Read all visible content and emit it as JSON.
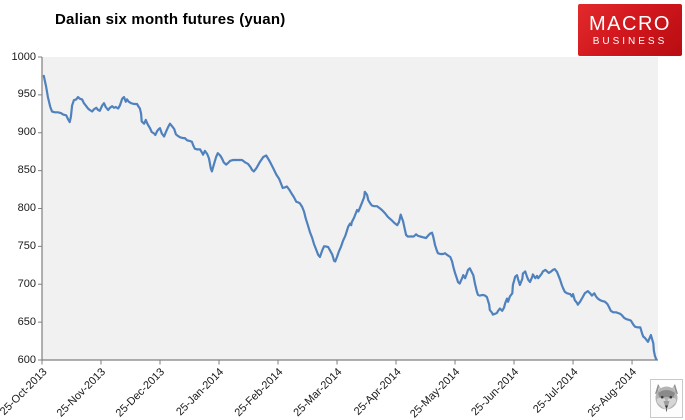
{
  "title": "Dalian six month futures (yuan)",
  "logo": {
    "line1": "MACRO",
    "line2": "BUSINESS",
    "bg_color": "#d2181e",
    "text_color": "#ffffff"
  },
  "wolf_logo": "wolf-head-stamp",
  "chart_data": {
    "type": "line",
    "title": "Dalian six month futures (yuan)",
    "xlabel": "",
    "ylabel": "",
    "ylim": [
      600,
      1000
    ],
    "y_ticks": [
      1000,
      950,
      900,
      850,
      800,
      750,
      700,
      650,
      600
    ],
    "x_tick_labels": [
      "25-Oct-2013",
      "25-Nov-2013",
      "25-Dec-2013",
      "25-Jan-2014",
      "25-Feb-2014",
      "25-Mar-2014",
      "25-Apr-2014",
      "25-May-2014",
      "25-Jun-2014",
      "25-Jul-2014",
      "25-Aug-2014"
    ],
    "x_unit": "months since 25-Oct-2013",
    "x_range_months": [
      0,
      10.44
    ],
    "grid": false,
    "legend": "none",
    "plot_bg": "#f1f1f2",
    "line_color": "#4f81bd",
    "axis_color": "#7f7f7f",
    "series": [
      {
        "name": "Dalian six month futures (yuan)",
        "points": [
          [
            0.03,
            975
          ],
          [
            0.07,
            961
          ],
          [
            0.1,
            947
          ],
          [
            0.14,
            934
          ],
          [
            0.17,
            928
          ],
          [
            0.22,
            927
          ],
          [
            0.27,
            927
          ],
          [
            0.32,
            926
          ],
          [
            0.36,
            924
          ],
          [
            0.41,
            923
          ],
          [
            0.44,
            918
          ],
          [
            0.47,
            914
          ],
          [
            0.49,
            921
          ],
          [
            0.51,
            936
          ],
          [
            0.54,
            943
          ],
          [
            0.58,
            944
          ],
          [
            0.61,
            947
          ],
          [
            0.64,
            945
          ],
          [
            0.68,
            944
          ],
          [
            0.71,
            939
          ],
          [
            0.75,
            935
          ],
          [
            0.78,
            932
          ],
          [
            0.81,
            930
          ],
          [
            0.85,
            928
          ],
          [
            0.88,
            931
          ],
          [
            0.92,
            933
          ],
          [
            0.95,
            930
          ],
          [
            0.98,
            929
          ],
          [
            1.02,
            936
          ],
          [
            1.05,
            939
          ],
          [
            1.08,
            934
          ],
          [
            1.12,
            930
          ],
          [
            1.15,
            933
          ],
          [
            1.19,
            935
          ],
          [
            1.22,
            933
          ],
          [
            1.25,
            934
          ],
          [
            1.29,
            932
          ],
          [
            1.32,
            936
          ],
          [
            1.36,
            945
          ],
          [
            1.39,
            947
          ],
          [
            1.42,
            941
          ],
          [
            1.44,
            944
          ],
          [
            1.47,
            941
          ],
          [
            1.51,
            939
          ],
          [
            1.56,
            938
          ],
          [
            1.61,
            938
          ],
          [
            1.64,
            934
          ],
          [
            1.66,
            932
          ],
          [
            1.68,
            925
          ],
          [
            1.69,
            915
          ],
          [
            1.73,
            912
          ],
          [
            1.76,
            917
          ],
          [
            1.78,
            913
          ],
          [
            1.8,
            910
          ],
          [
            1.83,
            906
          ],
          [
            1.86,
            901
          ],
          [
            1.9,
            899
          ],
          [
            1.92,
            897
          ],
          [
            1.95,
            902
          ],
          [
            1.98,
            905
          ],
          [
            2.0,
            906
          ],
          [
            2.03,
            899
          ],
          [
            2.07,
            895
          ],
          [
            2.1,
            901
          ],
          [
            2.14,
            908
          ],
          [
            2.17,
            912
          ],
          [
            2.2,
            909
          ],
          [
            2.24,
            905
          ],
          [
            2.27,
            898
          ],
          [
            2.3,
            896
          ],
          [
            2.34,
            894
          ],
          [
            2.39,
            893
          ],
          [
            2.42,
            893
          ],
          [
            2.46,
            890
          ],
          [
            2.51,
            889
          ],
          [
            2.54,
            888
          ],
          [
            2.56,
            884
          ],
          [
            2.59,
            879
          ],
          [
            2.63,
            878
          ],
          [
            2.68,
            878
          ],
          [
            2.71,
            874
          ],
          [
            2.73,
            871
          ],
          [
            2.76,
            876
          ],
          [
            2.8,
            872
          ],
          [
            2.83,
            866
          ],
          [
            2.86,
            853
          ],
          [
            2.88,
            849
          ],
          [
            2.92,
            860
          ],
          [
            2.95,
            868
          ],
          [
            2.98,
            873
          ],
          [
            3.02,
            870
          ],
          [
            3.05,
            866
          ],
          [
            3.08,
            861
          ],
          [
            3.12,
            858
          ],
          [
            3.15,
            860
          ],
          [
            3.19,
            863
          ],
          [
            3.24,
            864
          ],
          [
            3.29,
            864
          ],
          [
            3.34,
            864
          ],
          [
            3.39,
            864
          ],
          [
            3.44,
            861
          ],
          [
            3.49,
            859
          ],
          [
            3.53,
            855
          ],
          [
            3.56,
            851
          ],
          [
            3.59,
            849
          ],
          [
            3.63,
            853
          ],
          [
            3.66,
            857
          ],
          [
            3.69,
            861
          ],
          [
            3.75,
            868
          ],
          [
            3.8,
            870
          ],
          [
            3.83,
            866
          ],
          [
            3.86,
            862
          ],
          [
            3.92,
            853
          ],
          [
            3.97,
            845
          ],
          [
            4.02,
            839
          ],
          [
            4.05,
            833
          ],
          [
            4.08,
            827
          ],
          [
            4.12,
            828
          ],
          [
            4.15,
            829
          ],
          [
            4.19,
            825
          ],
          [
            4.22,
            821
          ],
          [
            4.27,
            815
          ],
          [
            4.31,
            809
          ],
          [
            4.34,
            808
          ],
          [
            4.37,
            807
          ],
          [
            4.41,
            802
          ],
          [
            4.44,
            796
          ],
          [
            4.47,
            787
          ],
          [
            4.51,
            777
          ],
          [
            4.54,
            769
          ],
          [
            4.58,
            761
          ],
          [
            4.61,
            753
          ],
          [
            4.64,
            747
          ],
          [
            4.68,
            739
          ],
          [
            4.71,
            736
          ],
          [
            4.75,
            745
          ],
          [
            4.78,
            750
          ],
          [
            4.81,
            750
          ],
          [
            4.85,
            749
          ],
          [
            4.88,
            745
          ],
          [
            4.92,
            739
          ],
          [
            4.95,
            731
          ],
          [
            4.97,
            730
          ],
          [
            5.0,
            736
          ],
          [
            5.03,
            743
          ],
          [
            5.07,
            750
          ],
          [
            5.1,
            757
          ],
          [
            5.14,
            764
          ],
          [
            5.17,
            771
          ],
          [
            5.19,
            776
          ],
          [
            5.22,
            780
          ],
          [
            5.24,
            778
          ],
          [
            5.25,
            782
          ],
          [
            5.29,
            788
          ],
          [
            5.32,
            794
          ],
          [
            5.34,
            798
          ],
          [
            5.36,
            796
          ],
          [
            5.39,
            801
          ],
          [
            5.42,
            807
          ],
          [
            5.46,
            815
          ],
          [
            5.47,
            822
          ],
          [
            5.51,
            818
          ],
          [
            5.53,
            811
          ],
          [
            5.56,
            807
          ],
          [
            5.59,
            804
          ],
          [
            5.63,
            803
          ],
          [
            5.68,
            803
          ],
          [
            5.73,
            800
          ],
          [
            5.76,
            798
          ],
          [
            5.81,
            794
          ],
          [
            5.86,
            789
          ],
          [
            5.92,
            785
          ],
          [
            5.97,
            781
          ],
          [
            6.02,
            778
          ],
          [
            6.05,
            782
          ],
          [
            6.07,
            789
          ],
          [
            6.08,
            792
          ],
          [
            6.12,
            783
          ],
          [
            6.15,
            772
          ],
          [
            6.17,
            765
          ],
          [
            6.2,
            763
          ],
          [
            6.25,
            763
          ],
          [
            6.3,
            763
          ],
          [
            6.34,
            766
          ],
          [
            6.37,
            764
          ],
          [
            6.41,
            763
          ],
          [
            6.46,
            762
          ],
          [
            6.51,
            761
          ],
          [
            6.54,
            764
          ],
          [
            6.58,
            767
          ],
          [
            6.61,
            768
          ],
          [
            6.63,
            763
          ],
          [
            6.66,
            752
          ],
          [
            6.69,
            745
          ],
          [
            6.71,
            741
          ],
          [
            6.75,
            740
          ],
          [
            6.8,
            740
          ],
          [
            6.83,
            741
          ],
          [
            6.86,
            739
          ],
          [
            6.92,
            736
          ],
          [
            6.95,
            730
          ],
          [
            6.97,
            723
          ],
          [
            7.0,
            715
          ],
          [
            7.03,
            708
          ],
          [
            7.05,
            703
          ],
          [
            7.08,
            701
          ],
          [
            7.12,
            708
          ],
          [
            7.14,
            712
          ],
          [
            7.17,
            708
          ],
          [
            7.2,
            714
          ],
          [
            7.22,
            719
          ],
          [
            7.25,
            721
          ],
          [
            7.31,
            712
          ],
          [
            7.34,
            700
          ],
          [
            7.37,
            690
          ],
          [
            7.39,
            686
          ],
          [
            7.42,
            685
          ],
          [
            7.47,
            686
          ],
          [
            7.51,
            685
          ],
          [
            7.54,
            683
          ],
          [
            7.58,
            673
          ],
          [
            7.59,
            666
          ],
          [
            7.63,
            662
          ],
          [
            7.64,
            660
          ],
          [
            7.68,
            661
          ],
          [
            7.71,
            662
          ],
          [
            7.73,
            665
          ],
          [
            7.76,
            668
          ],
          [
            7.8,
            665
          ],
          [
            7.83,
            669
          ],
          [
            7.85,
            675
          ],
          [
            7.88,
            681
          ],
          [
            7.9,
            677
          ],
          [
            7.93,
            684
          ],
          [
            7.97,
            688
          ],
          [
            7.98,
            699
          ],
          [
            8.02,
            710
          ],
          [
            8.05,
            712
          ],
          [
            8.07,
            706
          ],
          [
            8.1,
            699
          ],
          [
            8.14,
            707
          ],
          [
            8.15,
            714
          ],
          [
            8.19,
            717
          ],
          [
            8.22,
            710
          ],
          [
            8.24,
            706
          ],
          [
            8.27,
            703
          ],
          [
            8.31,
            710
          ],
          [
            8.32,
            713
          ],
          [
            8.36,
            708
          ],
          [
            8.39,
            711
          ],
          [
            8.41,
            708
          ],
          [
            8.44,
            711
          ],
          [
            8.47,
            714
          ],
          [
            8.49,
            717
          ],
          [
            8.53,
            719
          ],
          [
            8.56,
            717
          ],
          [
            8.59,
            715
          ],
          [
            8.63,
            717
          ],
          [
            8.66,
            719
          ],
          [
            8.69,
            720
          ],
          [
            8.73,
            716
          ],
          [
            8.75,
            712
          ],
          [
            8.78,
            706
          ],
          [
            8.81,
            699
          ],
          [
            8.83,
            695
          ],
          [
            8.86,
            690
          ],
          [
            8.9,
            688
          ],
          [
            8.95,
            687
          ],
          [
            8.98,
            684
          ],
          [
            9.0,
            687
          ],
          [
            9.03,
            679
          ],
          [
            9.07,
            675
          ],
          [
            9.08,
            673
          ],
          [
            9.12,
            677
          ],
          [
            9.15,
            681
          ],
          [
            9.17,
            684
          ],
          [
            9.2,
            688
          ],
          [
            9.25,
            691
          ],
          [
            9.29,
            688
          ],
          [
            9.32,
            685
          ],
          [
            9.36,
            688
          ],
          [
            9.39,
            684
          ],
          [
            9.42,
            681
          ],
          [
            9.46,
            679
          ],
          [
            9.49,
            678
          ],
          [
            9.54,
            677
          ],
          [
            9.58,
            674
          ],
          [
            9.61,
            670
          ],
          [
            9.64,
            665
          ],
          [
            9.68,
            663
          ],
          [
            9.73,
            663
          ],
          [
            9.76,
            662
          ],
          [
            9.8,
            661
          ],
          [
            9.83,
            659
          ],
          [
            9.86,
            656
          ],
          [
            9.9,
            654
          ],
          [
            9.95,
            653
          ],
          [
            9.98,
            652
          ],
          [
            10.02,
            647
          ],
          [
            10.05,
            644
          ],
          [
            10.1,
            643
          ],
          [
            10.14,
            643
          ],
          [
            10.17,
            635
          ],
          [
            10.19,
            631
          ],
          [
            10.22,
            629
          ],
          [
            10.25,
            626
          ],
          [
            10.27,
            624
          ],
          [
            10.31,
            631
          ],
          [
            10.32,
            633
          ],
          [
            10.36,
            622
          ],
          [
            10.37,
            612
          ],
          [
            10.39,
            605
          ],
          [
            10.41,
            601
          ]
        ]
      }
    ]
  }
}
